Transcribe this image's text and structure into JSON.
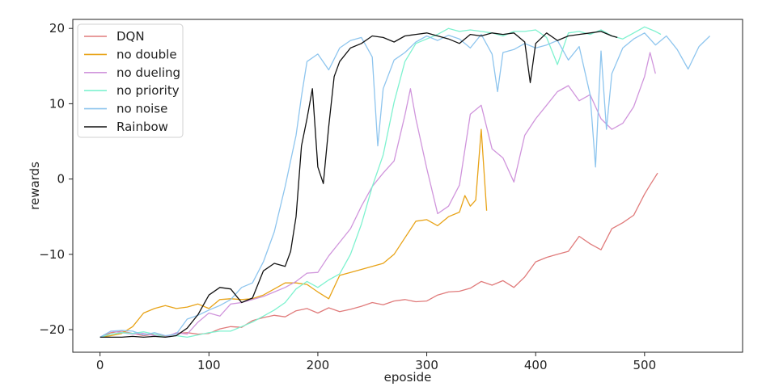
{
  "chart_data": {
    "type": "line",
    "title": "",
    "xlabel": "eposide",
    "ylabel": "rewards",
    "xlim": [
      -25,
      590
    ],
    "ylim": [
      -23,
      21.2
    ],
    "xticks": [
      0,
      100,
      200,
      300,
      400,
      500
    ],
    "yticks": [
      -20,
      -10,
      0,
      10,
      20
    ],
    "grid": false,
    "legend_position": "top-left",
    "series": [
      {
        "name": "DQN",
        "color": "#e07b7b",
        "x": [
          0,
          10,
          20,
          30,
          40,
          50,
          60,
          70,
          80,
          90,
          100,
          110,
          120,
          130,
          140,
          150,
          160,
          170,
          180,
          190,
          200,
          210,
          220,
          230,
          240,
          250,
          260,
          270,
          280,
          290,
          300,
          310,
          320,
          330,
          340,
          350,
          360,
          370,
          380,
          390,
          400,
          410,
          420,
          430,
          440,
          450,
          460,
          470,
          480,
          490,
          500,
          505,
          512
        ],
        "y": [
          -21,
          -20.4,
          -20.2,
          -20.5,
          -20.8,
          -20.6,
          -20.9,
          -20.5,
          -20.4,
          -20.6,
          -20.5,
          -19.9,
          -19.6,
          -19.7,
          -18.8,
          -18.4,
          -18.1,
          -18.3,
          -17.5,
          -17.2,
          -17.8,
          -17.1,
          -17.6,
          -17.3,
          -16.9,
          -16.4,
          -16.7,
          -16.2,
          -16.0,
          -16.3,
          -16.2,
          -15.4,
          -15.0,
          -14.9,
          -14.5,
          -13.6,
          -14.1,
          -13.5,
          -14.4,
          -13.0,
          -11.0,
          -10.4,
          -10.0,
          -9.6,
          -7.6,
          -8.6,
          -9.4,
          -6.6,
          -5.8,
          -4.8,
          -2.0,
          -0.8,
          0.8
        ]
      },
      {
        "name": "no double",
        "color": "#e8a317",
        "x": [
          0,
          10,
          20,
          30,
          40,
          50,
          60,
          70,
          80,
          90,
          100,
          110,
          120,
          130,
          140,
          150,
          160,
          170,
          180,
          190,
          200,
          210,
          220,
          230,
          240,
          250,
          260,
          270,
          280,
          290,
          300,
          310,
          320,
          330,
          335,
          340,
          345,
          350,
          355
        ],
        "y": [
          -21,
          -20.8,
          -20.5,
          -19.6,
          -17.8,
          -17.2,
          -16.8,
          -17.2,
          -17.0,
          -16.6,
          -17.2,
          -16.0,
          -15.9,
          -16.0,
          -15.9,
          -15.4,
          -14.6,
          -13.8,
          -13.8,
          -14.0,
          -15.0,
          -15.9,
          -12.8,
          -12.4,
          -12.0,
          -11.6,
          -11.2,
          -10.0,
          -7.8,
          -5.6,
          -5.4,
          -6.2,
          -5.0,
          -4.4,
          -2.2,
          -3.6,
          -2.8,
          6.6,
          -4.2
        ]
      },
      {
        "name": "no dueling",
        "color": "#d095dc",
        "x": [
          0,
          10,
          20,
          30,
          40,
          50,
          60,
          70,
          80,
          90,
          100,
          110,
          120,
          130,
          140,
          150,
          160,
          170,
          180,
          190,
          200,
          210,
          220,
          230,
          240,
          250,
          260,
          270,
          280,
          285,
          290,
          300,
          310,
          320,
          330,
          340,
          350,
          360,
          370,
          380,
          390,
          400,
          410,
          420,
          430,
          440,
          450,
          460,
          470,
          480,
          490,
          500,
          505,
          510
        ],
        "y": [
          -21,
          -20.2,
          -20.4,
          -20.6,
          -20.5,
          -20.8,
          -21.0,
          -20.4,
          -20.6,
          -19.0,
          -17.8,
          -18.2,
          -16.6,
          -16.4,
          -16.0,
          -15.6,
          -15.0,
          -14.4,
          -13.6,
          -12.5,
          -12.4,
          -10.2,
          -8.4,
          -6.6,
          -3.6,
          -1.0,
          0.8,
          2.4,
          8.5,
          12.0,
          8.0,
          1.4,
          -4.6,
          -3.6,
          -0.8,
          8.6,
          9.8,
          4.0,
          2.8,
          -0.4,
          5.8,
          8.0,
          9.8,
          11.6,
          12.4,
          10.4,
          11.2,
          8.0,
          6.6,
          7.4,
          9.6,
          13.6,
          16.8,
          14.0
        ]
      },
      {
        "name": "no priority",
        "color": "#7ef2cf",
        "x": [
          0,
          10,
          20,
          30,
          40,
          50,
          60,
          70,
          80,
          90,
          100,
          110,
          120,
          130,
          140,
          150,
          160,
          170,
          180,
          190,
          200,
          210,
          220,
          230,
          240,
          250,
          260,
          270,
          280,
          290,
          300,
          310,
          320,
          330,
          340,
          350,
          360,
          370,
          380,
          390,
          400,
          410,
          420,
          430,
          440,
          450,
          460,
          470,
          480,
          490,
          500,
          510,
          515
        ],
        "y": [
          -21,
          -20.6,
          -20.4,
          -20.5,
          -20.3,
          -20.6,
          -21.0,
          -20.8,
          -21.0,
          -20.7,
          -20.4,
          -20.2,
          -20.2,
          -19.6,
          -19.0,
          -18.2,
          -17.4,
          -16.4,
          -14.6,
          -13.6,
          -14.4,
          -13.4,
          -12.6,
          -10.0,
          -6.0,
          -1.0,
          3.2,
          10.2,
          15.6,
          18.0,
          18.6,
          19.2,
          20.0,
          19.6,
          19.8,
          19.6,
          19.4,
          19.0,
          19.6,
          19.6,
          19.8,
          18.8,
          15.2,
          19.4,
          19.6,
          19.2,
          19.8,
          19.0,
          18.6,
          19.4,
          20.2,
          19.6,
          19.2
        ]
      },
      {
        "name": "no noise",
        "color": "#8ec5ee",
        "x": [
          0,
          10,
          20,
          30,
          40,
          50,
          60,
          70,
          80,
          90,
          100,
          110,
          120,
          130,
          140,
          150,
          160,
          170,
          180,
          185,
          190,
          200,
          210,
          220,
          230,
          240,
          250,
          255,
          260,
          270,
          280,
          290,
          300,
          310,
          320,
          330,
          340,
          350,
          360,
          365,
          370,
          380,
          390,
          400,
          410,
          420,
          430,
          440,
          450,
          455,
          460,
          465,
          470,
          480,
          490,
          500,
          510,
          520,
          530,
          540,
          550,
          560
        ],
        "y": [
          -21,
          -20.2,
          -20.1,
          -20.2,
          -20.7,
          -20.4,
          -20.8,
          -20.6,
          -18.6,
          -18.1,
          -17.4,
          -16.8,
          -16.0,
          -14.4,
          -13.8,
          -11.0,
          -7.0,
          -1.0,
          5.8,
          11.0,
          15.6,
          16.6,
          14.5,
          17.4,
          18.4,
          18.8,
          16.2,
          4.4,
          12.0,
          15.8,
          16.8,
          18.2,
          19.0,
          18.4,
          19.1,
          18.6,
          17.4,
          19.2,
          16.6,
          11.6,
          16.8,
          17.2,
          18.0,
          17.4,
          17.8,
          18.4,
          15.8,
          17.6,
          11.2,
          1.6,
          17.0,
          6.6,
          14.0,
          17.4,
          18.6,
          19.4,
          17.8,
          19.0,
          17.2,
          14.6,
          17.6,
          19.0
        ]
      },
      {
        "name": "Rainbow",
        "color": "#111111",
        "x": [
          0,
          10,
          20,
          30,
          40,
          50,
          60,
          70,
          80,
          90,
          100,
          110,
          120,
          130,
          140,
          150,
          160,
          170,
          175,
          180,
          185,
          190,
          195,
          200,
          205,
          210,
          215,
          220,
          230,
          240,
          250,
          260,
          270,
          280,
          290,
          300,
          310,
          320,
          330,
          340,
          350,
          360,
          370,
          380,
          390,
          395,
          400,
          410,
          420,
          430,
          440,
          450,
          460,
          470,
          475
        ],
        "y": [
          -21,
          -21.0,
          -21.0,
          -20.9,
          -21.0,
          -20.9,
          -21.0,
          -20.8,
          -19.8,
          -18.0,
          -15.4,
          -14.4,
          -14.6,
          -16.4,
          -15.8,
          -12.2,
          -11.2,
          -11.6,
          -9.6,
          -5.0,
          4.4,
          8.0,
          12.0,
          1.6,
          -0.6,
          7.0,
          13.6,
          15.6,
          17.4,
          18.0,
          19.0,
          18.8,
          18.2,
          19.0,
          19.2,
          19.4,
          19.0,
          18.6,
          18.0,
          19.2,
          19.0,
          19.4,
          19.2,
          19.4,
          18.2,
          12.8,
          18.0,
          19.4,
          18.4,
          19.0,
          19.2,
          19.4,
          19.6,
          19.0,
          18.8
        ]
      }
    ]
  }
}
